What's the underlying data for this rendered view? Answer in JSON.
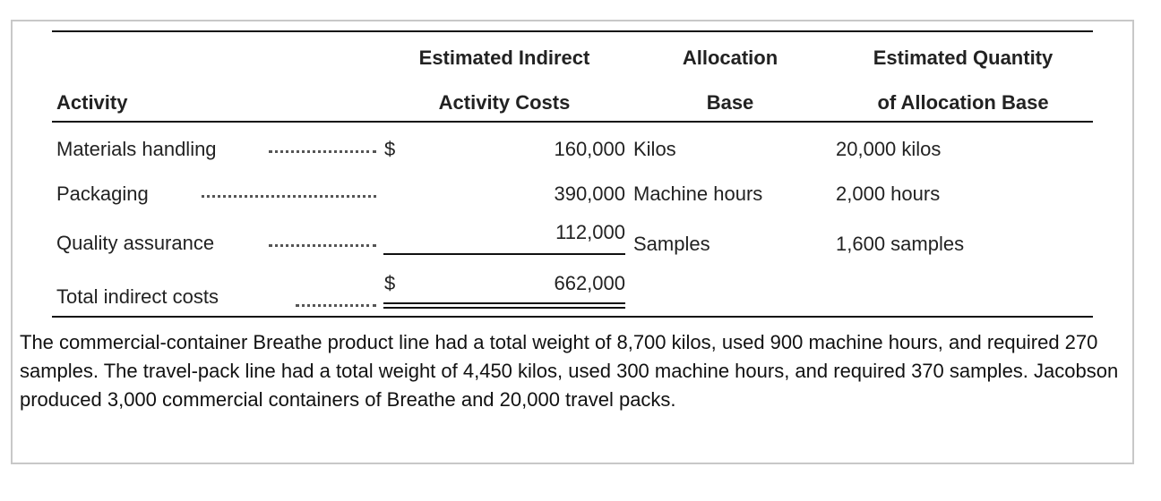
{
  "table": {
    "headers": [
      [
        "Activity"
      ],
      [
        "Estimated Indirect",
        "Activity Costs"
      ],
      [
        "Allocation",
        "Base"
      ],
      [
        "Estimated Quantity",
        "of Allocation Base"
      ]
    ],
    "rows": [
      {
        "activity": "Materials handling",
        "currency": "$",
        "cost": "160,000",
        "base": "Kilos",
        "quantity": "20,000 kilos"
      },
      {
        "activity": "Packaging",
        "cost": "390,000",
        "base": "Machine hours",
        "quantity": "2,000 hours"
      },
      {
        "activity": "Quality assurance",
        "cost": "112,000",
        "base": "Samples",
        "quantity": "1,600 samples"
      }
    ],
    "total": {
      "activity": "Total indirect costs",
      "currency": "$",
      "cost": "662,000"
    }
  },
  "paragraph": "The commercial-container Breathe product line had a total weight of 8,700 kilos, used 900 machine hours, and required 270 samples. The travel-pack line had a total weight of 4,450 kilos, used 300 machine hours, and required 370 samples. Jacobson produced 3,000 commercial containers of Breathe and 20,000 travel packs."
}
